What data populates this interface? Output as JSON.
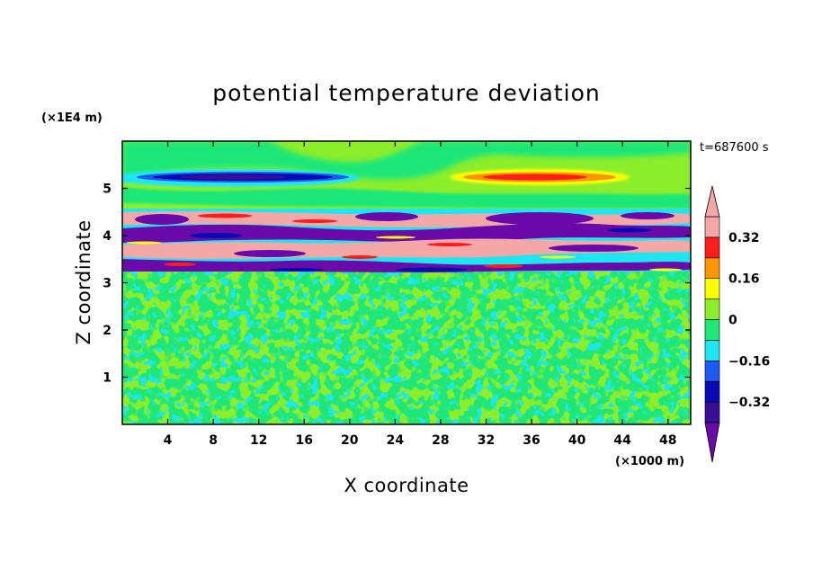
{
  "chart_data": {
    "type": "heatmap",
    "title": "potential temperature deviation",
    "xlabel": "X coordinate",
    "ylabel": "Z coordinate",
    "x_unit": "(×1000 m)",
    "y_unit": "(×1E4 m)",
    "time_label": "t=687600 s",
    "xlim": [
      0,
      50
    ],
    "ylim": [
      0,
      6
    ],
    "x_ticks": [
      4,
      8,
      12,
      16,
      20,
      24,
      28,
      32,
      36,
      40,
      44,
      48
    ],
    "y_ticks": [
      1,
      2,
      3,
      4,
      5
    ],
    "colorbar": {
      "ticks": [
        0.32,
        0.16,
        0,
        -0.16,
        -0.32
      ],
      "tick_labels": [
        "0.32",
        "0.16",
        "0",
        "−0.16",
        "−0.32"
      ],
      "levels": [
        -0.4,
        -0.32,
        -0.24,
        -0.16,
        -0.08,
        0,
        0.08,
        0.16,
        0.24,
        0.32,
        0.4
      ],
      "colors": [
        "#6a0aa8",
        "#3c0e96",
        "#0a0ab4",
        "#1e5af0",
        "#1ee6f0",
        "#1ee678",
        "#8ced2b",
        "#ffff00",
        "#ff9600",
        "#ff1e1e",
        "#f4a7a7"
      ],
      "extend": "both"
    },
    "regions": [
      {
        "name": "upper layer background",
        "z_range": [
          4.6,
          6.0
        ],
        "value": 0.04
      },
      {
        "name": "upper cold anomaly",
        "x_center": 12,
        "z_center": 5.2,
        "value": -0.38
      },
      {
        "name": "upper warm anomaly",
        "x_center": 36,
        "z_center": 5.2,
        "value": 0.3
      },
      {
        "name": "turbulent band",
        "z_range": [
          3.1,
          4.6
        ],
        "value_range": [
          -0.4,
          0.4
        ]
      },
      {
        "name": "lower noisy layer",
        "z_range": [
          0,
          3.1
        ],
        "value_range": [
          -0.05,
          0.05
        ]
      }
    ]
  }
}
